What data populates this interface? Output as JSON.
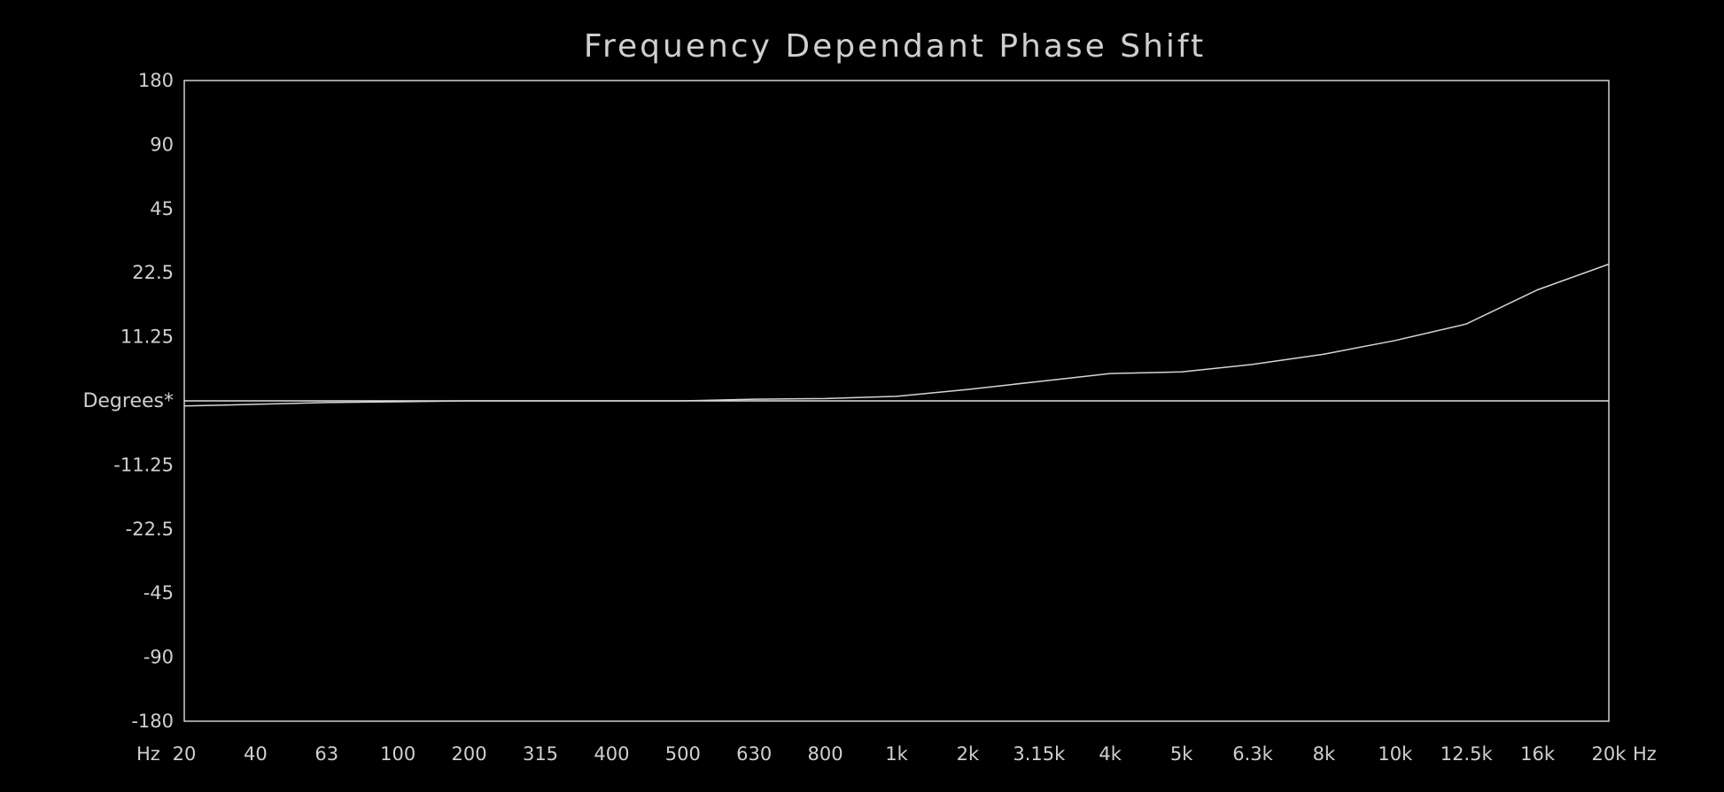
{
  "colors": {
    "background": "#000000",
    "foreground": "#cfcfcf",
    "series": "#d6d6d6"
  },
  "chart_data": {
    "type": "line",
    "title": "Frequency Dependant Phase Shift",
    "ylabel": "Degrees*",
    "x_unit_left": "Hz",
    "x_unit_right": "Hz",
    "x_axis_scale": "categorical (evenly spaced frequency bands)",
    "y_axis_scale": "non-linear (evenly spaced labelled levels)",
    "categories": [
      "20",
      "40",
      "63",
      "100",
      "200",
      "315",
      "400",
      "500",
      "630",
      "800",
      "1k",
      "2k",
      "3.15k",
      "4k",
      "5k",
      "6.3k",
      "8k",
      "10k",
      "12.5k",
      "16k",
      "20k"
    ],
    "y_ticks": [
      180,
      90,
      45,
      22.5,
      11.25,
      0,
      -11.25,
      -22.5,
      -45,
      -90,
      -180
    ],
    "y_tick_labels": [
      "180",
      "90",
      "45",
      "22.5",
      "11.25",
      "Degrees*",
      "-11.25",
      "-22.5",
      "-45",
      "-90",
      "-180"
    ],
    "ylim": [
      -180,
      180
    ],
    "grid": false,
    "zero_line": true,
    "series": [
      {
        "values": [
          -0.9,
          -0.6,
          -0.3,
          -0.15,
          0,
          0,
          0,
          0,
          0.3,
          0.4,
          0.8,
          2.0,
          3.4,
          4.8,
          5.1,
          6.4,
          8.2,
          10.6,
          13.5,
          19.5,
          25.5
        ]
      }
    ]
  }
}
